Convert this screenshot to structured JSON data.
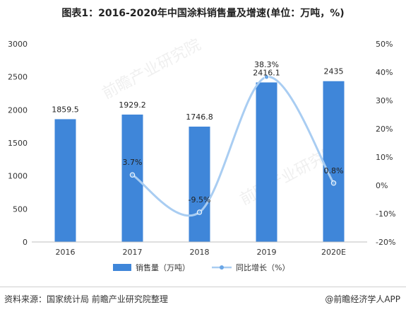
{
  "title": "图表1：2016-2020年中国涂料销售量及增速(单位：万吨，%)",
  "source": "资料来源：国家统计局 前瞻产业研究院整理",
  "brand": "@前瞻经济学人APP",
  "watermark": "前瞻产业研究院",
  "chart_data": {
    "type": "bar",
    "categories": [
      "2016",
      "2017",
      "2018",
      "2019",
      "2020E"
    ],
    "series": [
      {
        "name": "销售量（万吨）",
        "type": "bar",
        "axis": "left",
        "values": [
          1859.5,
          1929.2,
          1746.8,
          2416.1,
          2435
        ],
        "labels": [
          "1859.5",
          "1929.2",
          "1746.8",
          "2416.1",
          "2435"
        ]
      },
      {
        "name": "同比增长（%）",
        "type": "line",
        "axis": "right",
        "values": [
          null,
          3.7,
          -9.5,
          38.3,
          0.8
        ],
        "labels": [
          "",
          "3.7%",
          "-9.5%",
          "38.3%",
          "0.8%"
        ]
      }
    ],
    "y_left": {
      "min": 0,
      "max": 3000,
      "ticks": [
        "0",
        "500",
        "1000",
        "1500",
        "2000",
        "2500",
        "3000"
      ]
    },
    "y_right": {
      "min": -20,
      "max": 50,
      "ticks": [
        "-20%",
        "-10%",
        "0%",
        "10%",
        "20%",
        "30%",
        "40%",
        "50%"
      ]
    },
    "legend_position": "bottom",
    "colors": {
      "bar": "#3f86d9",
      "line": "#a9cdf2",
      "marker": "#6aa6e6"
    }
  }
}
